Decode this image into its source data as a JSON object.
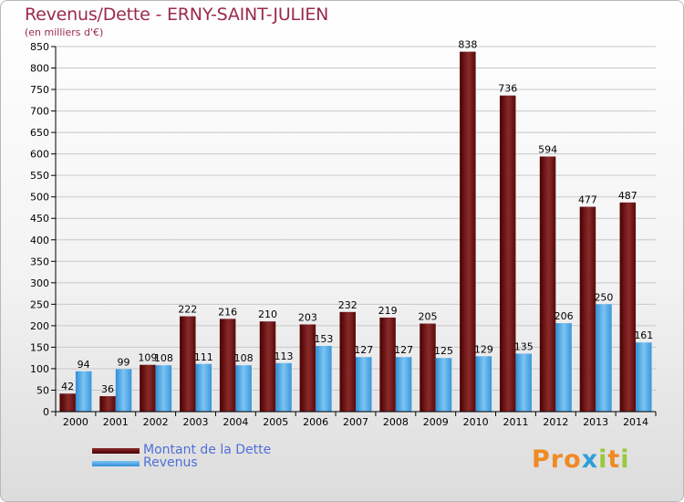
{
  "title": "Revenus/Dette - ERNY-SAINT-JULIEN",
  "subtitle": "(en milliers d'€)",
  "legend": {
    "debt": "Montant de la Dette",
    "revenue": "Revenus"
  },
  "logo": {
    "text": "Proxiti",
    "colors": [
      "#f08a24",
      "#2f9fd8",
      "#9ac83a"
    ]
  },
  "colors": {
    "debt": "#6e1212",
    "revenue": "#4aa6e8",
    "axis_text": "#000000",
    "grid": "#c8c8c8"
  },
  "chart_data": {
    "type": "bar",
    "title": "Revenus/Dette - ERNY-SAINT-JULIEN",
    "ylabel": "(en milliers d'€)",
    "xlabel": "",
    "ylim": [
      0,
      850
    ],
    "ytick_step": 50,
    "grid": true,
    "legend_position": "bottom-left",
    "categories": [
      "2000",
      "2001",
      "2002",
      "2003",
      "2004",
      "2005",
      "2006",
      "2007",
      "2008",
      "2009",
      "2010",
      "2011",
      "2012",
      "2013",
      "2014"
    ],
    "series": [
      {
        "name": "Montant de la Dette",
        "values": [
          42,
          36,
          109,
          222,
          216,
          210,
          203,
          232,
          219,
          205,
          838,
          736,
          594,
          477,
          487
        ]
      },
      {
        "name": "Revenus",
        "values": [
          94,
          99,
          108,
          111,
          108,
          113,
          153,
          127,
          127,
          125,
          129,
          135,
          206,
          250,
          161
        ]
      }
    ]
  }
}
